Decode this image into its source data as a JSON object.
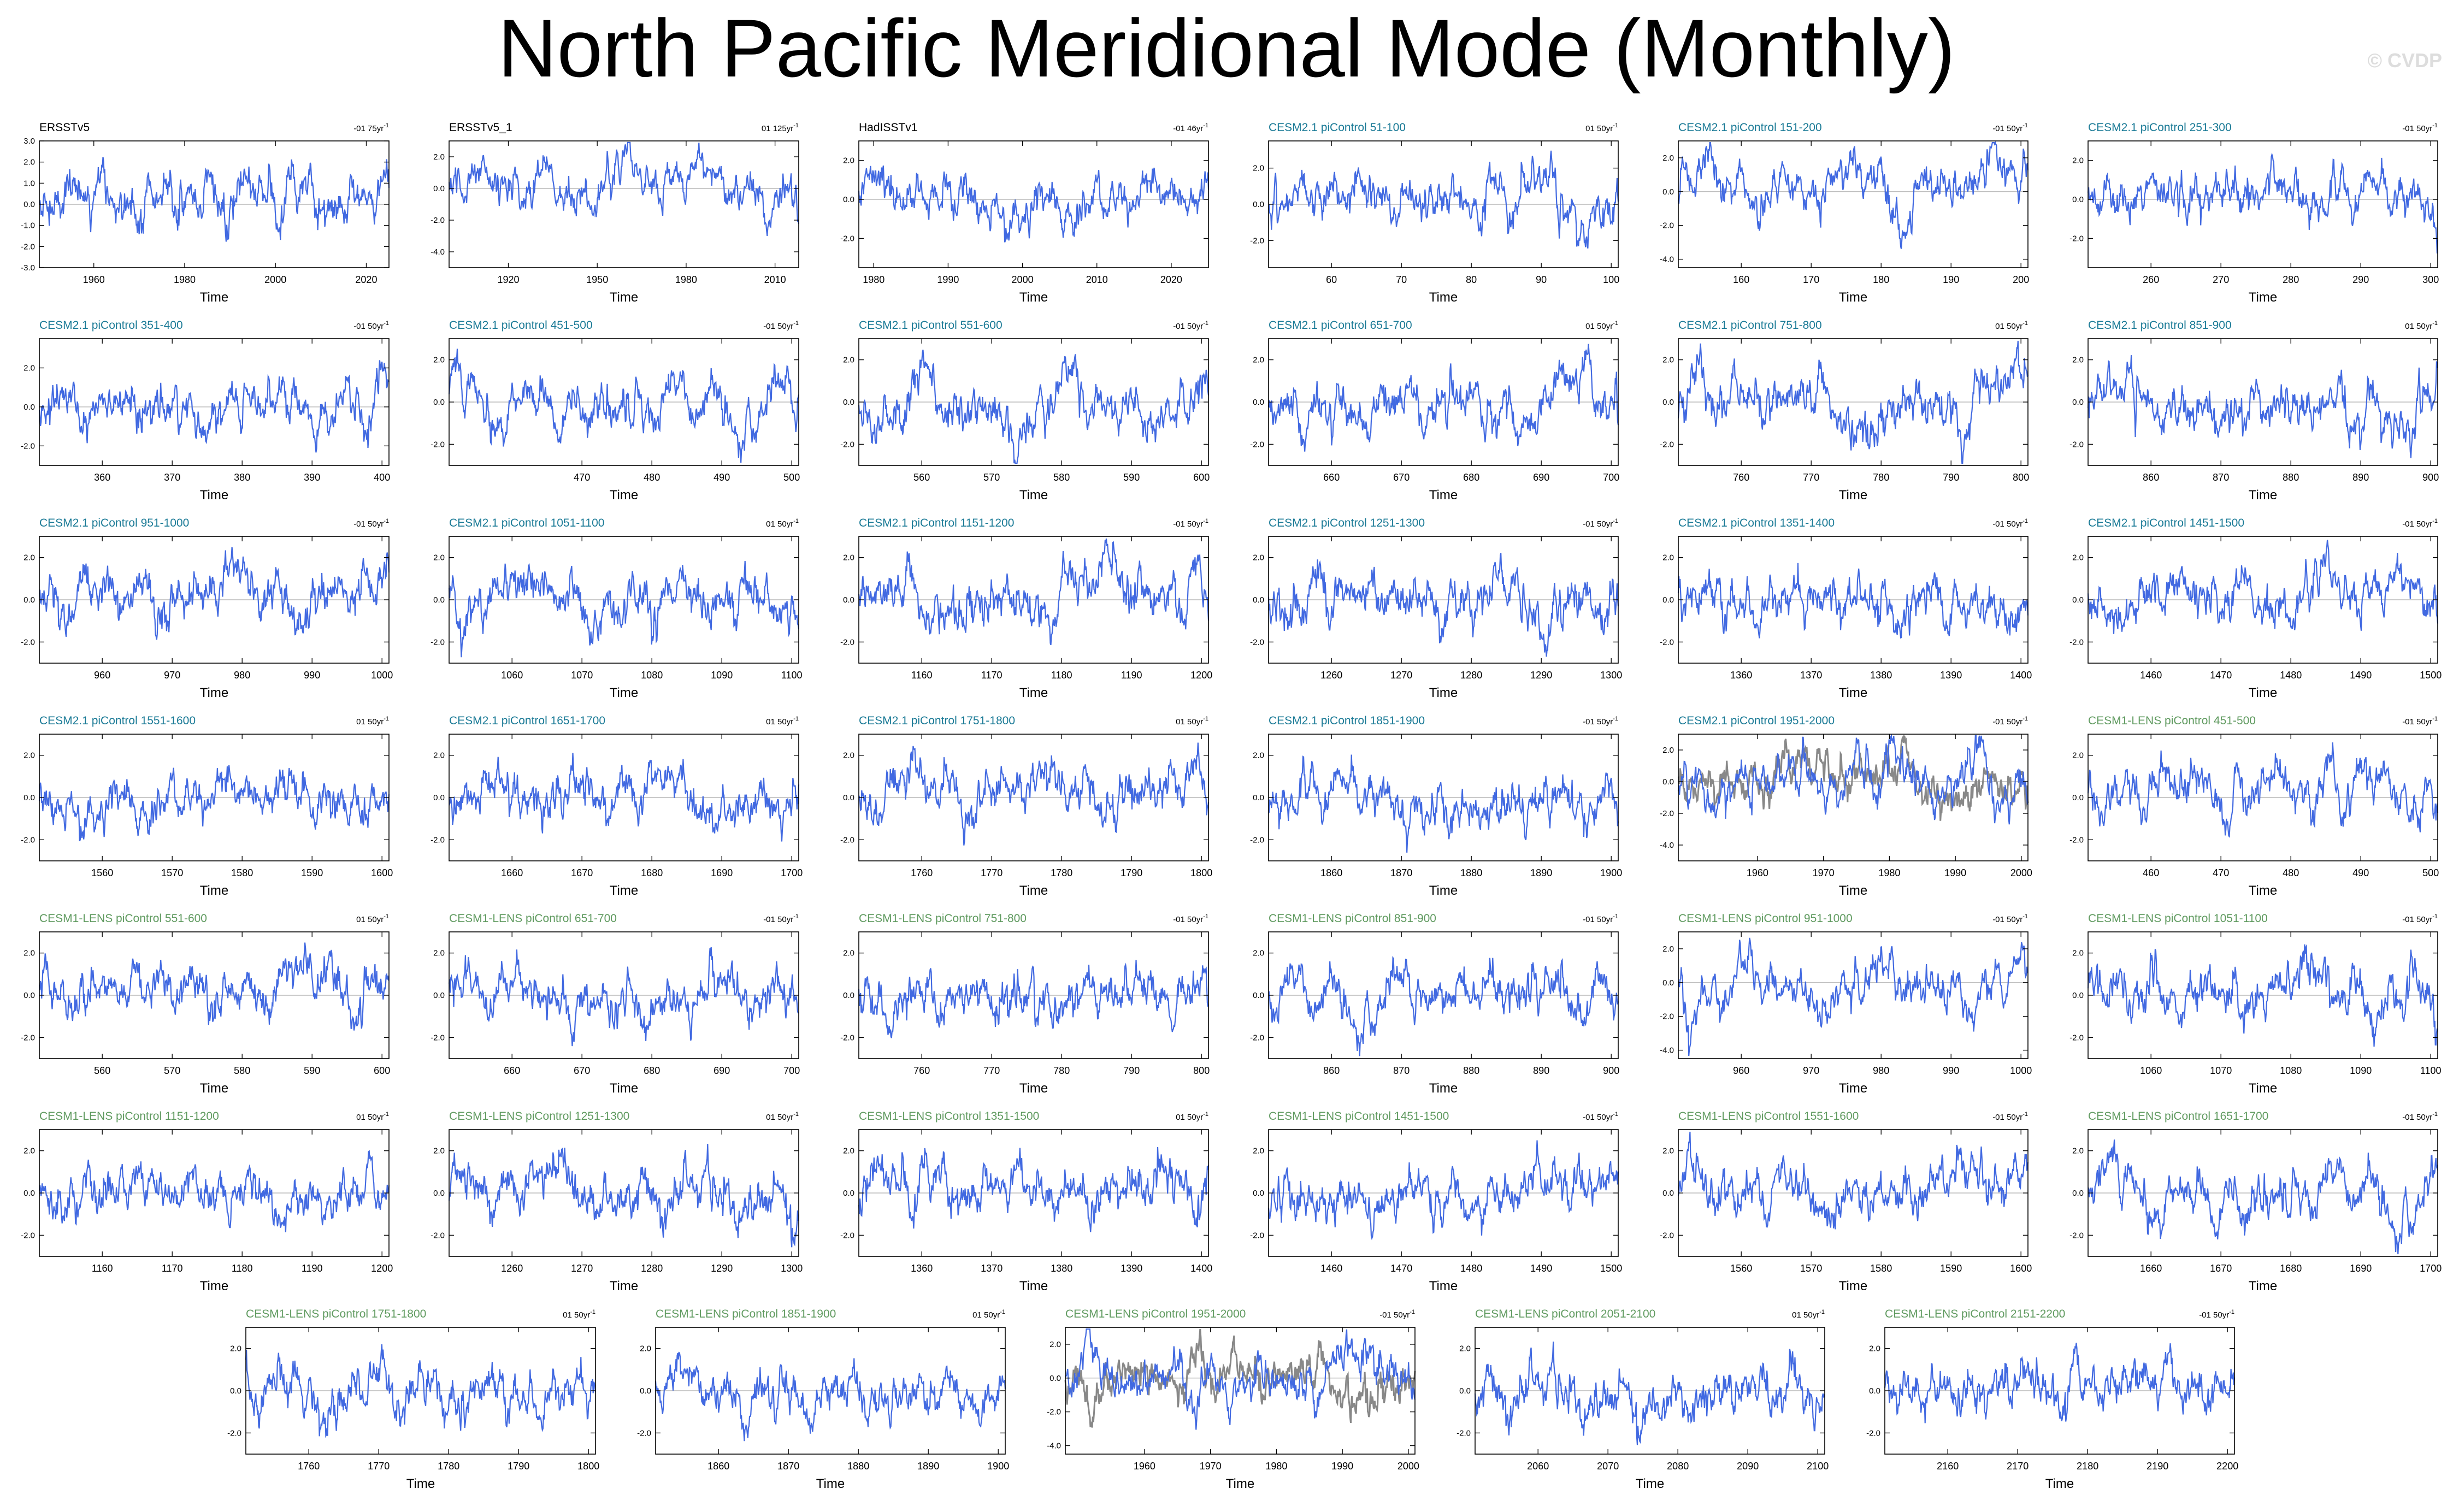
{
  "page": {
    "title": "North Pacific Meridional Mode (Monthly)",
    "watermark": "© CVDP"
  },
  "colors": {
    "observations_title": "#000000",
    "cesm2_title": "#1a7a96",
    "cesm1_title": "#5f9a5f",
    "series_line": "#4169e1",
    "reference_line": "#888888",
    "zero_line": "#aaaaaa"
  },
  "chart_data": [
    {
      "type": "line",
      "title": "ERSSTv5",
      "group": "obs",
      "trend": "-01 75yr",
      "xlabel": "Time",
      "xlim": [
        1948,
        2025
      ],
      "xticks": [
        1960,
        1980,
        2000,
        2020
      ],
      "ylim": [
        -3.0,
        3.0
      ],
      "yticks": [
        "3.0",
        "2.0",
        "1.0",
        "0.0",
        "-1.0",
        "-2.0",
        "-3.0"
      ],
      "seed": 11
    },
    {
      "type": "line",
      "title": "ERSSTv5_1",
      "group": "obs",
      "trend": "01 125yr",
      "xlabel": "Time",
      "xlim": [
        1900,
        2018
      ],
      "xticks": [
        1920,
        1950,
        1980,
        2010
      ],
      "ylim": [
        -5.0,
        3.0
      ],
      "yticks": [
        "2.0",
        "0.0",
        "-2.0",
        "-4.0"
      ],
      "seed": 12
    },
    {
      "type": "line",
      "title": "HadISSTv1",
      "group": "obs",
      "trend": "-01 46yr",
      "xlabel": "Time",
      "xlim": [
        1978,
        2025
      ],
      "xticks": [
        1980,
        1990,
        2000,
        2010,
        2020
      ],
      "ylim": [
        -3.5,
        3.0
      ],
      "yticks": [
        "2.0",
        "0.0",
        "-2.0"
      ],
      "seed": 13
    },
    {
      "type": "line",
      "title": "CESM2.1 piControl 51-100",
      "group": "cesm2",
      "trend": "01 50yr",
      "xlabel": "Time",
      "xlim": [
        51,
        101
      ],
      "xticks": [
        60,
        70,
        80,
        90,
        100
      ],
      "ylim": [
        -3.5,
        3.5
      ],
      "yticks": [
        "2.0",
        "0.0",
        "-2.0"
      ],
      "seed": 14
    },
    {
      "type": "line",
      "title": "CESM2.1 piControl 151-200",
      "group": "cesm2",
      "trend": "-01 50yr",
      "xlabel": "Time",
      "xlim": [
        151,
        201
      ],
      "xticks": [
        160,
        170,
        180,
        190,
        200
      ],
      "ylim": [
        -4.5,
        3.0
      ],
      "yticks": [
        "2.0",
        "0.0",
        "-2.0",
        "-4.0"
      ],
      "seed": 15
    },
    {
      "type": "line",
      "title": "CESM2.1 piControl 251-300",
      "group": "cesm2",
      "trend": "-01 50yr",
      "xlabel": "Time",
      "xlim": [
        251,
        301
      ],
      "xticks": [
        260,
        270,
        280,
        290,
        300
      ],
      "ylim": [
        -3.5,
        3.0
      ],
      "yticks": [
        "2.0",
        "0.0",
        "-2.0"
      ],
      "seed": 16
    },
    {
      "type": "line",
      "title": "CESM2.1 piControl 351-400",
      "group": "cesm2",
      "trend": "-01 50yr",
      "xlabel": "Time",
      "xlim": [
        351,
        401
      ],
      "xticks": [
        360,
        370,
        380,
        390,
        400
      ],
      "ylim": [
        -3.0,
        3.5
      ],
      "yticks": [
        "2.0",
        "0.0",
        "-2.0"
      ],
      "seed": 21
    },
    {
      "type": "line",
      "title": "CESM2.1 piControl 451-500",
      "group": "cesm2",
      "trend": "-01 50yr",
      "xlabel": "Time",
      "xlim": [
        451,
        501
      ],
      "xticks": [
        470,
        480,
        490,
        500
      ],
      "ylim": [
        -3.0,
        3.0
      ],
      "yticks": [
        "2.0",
        "0.0",
        "-2.0"
      ],
      "seed": 22
    },
    {
      "type": "line",
      "title": "CESM2.1 piControl 551-600",
      "group": "cesm2",
      "trend": "-01 50yr",
      "xlabel": "Time",
      "xlim": [
        551,
        601
      ],
      "xticks": [
        560,
        570,
        580,
        590,
        600
      ],
      "ylim": [
        -3.0,
        3.0
      ],
      "yticks": [
        "2.0",
        "0.0",
        "-2.0"
      ],
      "seed": 23
    },
    {
      "type": "line",
      "title": "CESM2.1 piControl 651-700",
      "group": "cesm2",
      "trend": "01 50yr",
      "xlabel": "Time",
      "xlim": [
        651,
        701
      ],
      "xticks": [
        660,
        670,
        680,
        690,
        700
      ],
      "ylim": [
        -3.0,
        3.0
      ],
      "yticks": [
        "2.0",
        "0.0",
        "-2.0"
      ],
      "seed": 24
    },
    {
      "type": "line",
      "title": "CESM2.1 piControl 751-800",
      "group": "cesm2",
      "trend": "01 50yr",
      "xlabel": "Time",
      "xlim": [
        751,
        801
      ],
      "xticks": [
        760,
        770,
        780,
        790,
        800
      ],
      "ylim": [
        -3.0,
        3.0
      ],
      "yticks": [
        "2.0",
        "0.0",
        "-2.0"
      ],
      "seed": 25
    },
    {
      "type": "line",
      "title": "CESM2.1 piControl 851-900",
      "group": "cesm2",
      "trend": "01 50yr",
      "xlabel": "Time",
      "xlim": [
        851,
        901
      ],
      "xticks": [
        860,
        870,
        880,
        890,
        900
      ],
      "ylim": [
        -3.0,
        3.0
      ],
      "yticks": [
        "2.0",
        "0.0",
        "-2.0"
      ],
      "seed": 26
    },
    {
      "type": "line",
      "title": "CESM2.1 piControl 951-1000",
      "group": "cesm2",
      "trend": "-01 50yr",
      "xlabel": "Time",
      "xlim": [
        951,
        1001
      ],
      "xticks": [
        960,
        970,
        980,
        990,
        1000
      ],
      "ylim": [
        -3.0,
        3.0
      ],
      "yticks": [
        "2.0",
        "0.0",
        "-2.0"
      ],
      "seed": 31
    },
    {
      "type": "line",
      "title": "CESM2.1 piControl 1051-1100",
      "group": "cesm2",
      "trend": "01 50yr",
      "xlabel": "Time",
      "xlim": [
        1051,
        1101
      ],
      "xticks": [
        1060,
        1070,
        1080,
        1090,
        1100
      ],
      "ylim": [
        -3.0,
        3.0
      ],
      "yticks": [
        "2.0",
        "0.0",
        "-2.0"
      ],
      "seed": 32
    },
    {
      "type": "line",
      "title": "CESM2.1 piControl 1151-1200",
      "group": "cesm2",
      "trend": "-01 50yr",
      "xlabel": "Time",
      "xlim": [
        1151,
        1201
      ],
      "xticks": [
        1160,
        1170,
        1180,
        1190,
        1200
      ],
      "ylim": [
        -3.0,
        3.0
      ],
      "yticks": [
        "2.0",
        "0.0",
        "-2.0"
      ],
      "seed": 33
    },
    {
      "type": "line",
      "title": "CESM2.1 piControl 1251-1300",
      "group": "cesm2",
      "trend": "-01 50yr",
      "xlabel": "Time",
      "xlim": [
        1251,
        1301
      ],
      "xticks": [
        1260,
        1270,
        1280,
        1290,
        1300
      ],
      "ylim": [
        -3.0,
        3.0
      ],
      "yticks": [
        "2.0",
        "0.0",
        "-2.0"
      ],
      "seed": 34
    },
    {
      "type": "line",
      "title": "CESM2.1 piControl 1351-1400",
      "group": "cesm2",
      "trend": "-01 50yr",
      "xlabel": "Time",
      "xlim": [
        1351,
        1401
      ],
      "xticks": [
        1360,
        1370,
        1380,
        1390,
        1400
      ],
      "ylim": [
        -3.0,
        3.0
      ],
      "yticks": [
        "2.0",
        "0.0",
        "-2.0"
      ],
      "seed": 35
    },
    {
      "type": "line",
      "title": "CESM2.1 piControl 1451-1500",
      "group": "cesm2",
      "trend": "-01 50yr",
      "xlabel": "Time",
      "xlim": [
        1451,
        1501
      ],
      "xticks": [
        1460,
        1470,
        1480,
        1490,
        1500
      ],
      "ylim": [
        -3.0,
        3.0
      ],
      "yticks": [
        "2.0",
        "0.0",
        "-2.0"
      ],
      "seed": 36
    },
    {
      "type": "line",
      "title": "CESM2.1 piControl 1551-1600",
      "group": "cesm2",
      "trend": "01 50yr",
      "xlabel": "Time",
      "xlim": [
        1551,
        1601
      ],
      "xticks": [
        1560,
        1570,
        1580,
        1590,
        1600
      ],
      "ylim": [
        -3.0,
        3.0
      ],
      "yticks": [
        "2.0",
        "0.0",
        "-2.0"
      ],
      "seed": 41
    },
    {
      "type": "line",
      "title": "CESM2.1 piControl 1651-1700",
      "group": "cesm2",
      "trend": "01 50yr",
      "xlabel": "Time",
      "xlim": [
        1651,
        1701
      ],
      "xticks": [
        1660,
        1670,
        1680,
        1690,
        1700
      ],
      "ylim": [
        -3.0,
        3.0
      ],
      "yticks": [
        "2.0",
        "0.0",
        "-2.0"
      ],
      "seed": 42
    },
    {
      "type": "line",
      "title": "CESM2.1 piControl 1751-1800",
      "group": "cesm2",
      "trend": "01 50yr",
      "xlabel": "Time",
      "xlim": [
        1751,
        1801
      ],
      "xticks": [
        1760,
        1770,
        1780,
        1790,
        1800
      ],
      "ylim": [
        -3.0,
        3.0
      ],
      "yticks": [
        "2.0",
        "0.0",
        "-2.0"
      ],
      "seed": 43
    },
    {
      "type": "line",
      "title": "CESM2.1 piControl 1851-1900",
      "group": "cesm2",
      "trend": "-01 50yr",
      "xlabel": "Time",
      "xlim": [
        1851,
        1901
      ],
      "xticks": [
        1860,
        1870,
        1880,
        1890,
        1900
      ],
      "ylim": [
        -3.0,
        3.0
      ],
      "yticks": [
        "2.0",
        "0.0",
        "-2.0"
      ],
      "seed": 44
    },
    {
      "type": "line",
      "title": "CESM2.1 piControl 1951-2000",
      "group": "cesm2",
      "trend": "-01 50yr",
      "xlabel": "Time",
      "xlim": [
        1948,
        2001
      ],
      "xticks": [
        1960,
        1970,
        1980,
        1990,
        2000
      ],
      "ylim": [
        -5.0,
        3.0
      ],
      "yticks": [
        "2.0",
        "0.0",
        "-2.0",
        "-4.0"
      ],
      "overlay": true,
      "seed": 45
    },
    {
      "type": "line",
      "title": "CESM1-LENS piControl 451-500",
      "group": "cesm1",
      "trend": "-01 50yr",
      "xlabel": "Time",
      "xlim": [
        451,
        501
      ],
      "xticks": [
        460,
        470,
        480,
        490,
        500
      ],
      "ylim": [
        -3.0,
        3.0
      ],
      "yticks": [
        "2.0",
        "0.0",
        "-2.0"
      ],
      "seed": 46
    },
    {
      "type": "line",
      "title": "CESM1-LENS piControl 551-600",
      "group": "cesm1",
      "trend": "01 50yr",
      "xlabel": "Time",
      "xlim": [
        551,
        601
      ],
      "xticks": [
        560,
        570,
        580,
        590,
        600
      ],
      "ylim": [
        -3.0,
        3.0
      ],
      "yticks": [
        "2.0",
        "0.0",
        "-2.0"
      ],
      "seed": 51
    },
    {
      "type": "line",
      "title": "CESM1-LENS piControl 651-700",
      "group": "cesm1",
      "trend": "-01 50yr",
      "xlabel": "Time",
      "xlim": [
        651,
        701
      ],
      "xticks": [
        660,
        670,
        680,
        690,
        700
      ],
      "ylim": [
        -3.0,
        3.0
      ],
      "yticks": [
        "2.0",
        "0.0",
        "-2.0"
      ],
      "seed": 52
    },
    {
      "type": "line",
      "title": "CESM1-LENS piControl 751-800",
      "group": "cesm1",
      "trend": "-01 50yr",
      "xlabel": "Time",
      "xlim": [
        751,
        801
      ],
      "xticks": [
        760,
        770,
        780,
        790,
        800
      ],
      "ylim": [
        -3.0,
        3.0
      ],
      "yticks": [
        "2.0",
        "0.0",
        "-2.0"
      ],
      "seed": 53
    },
    {
      "type": "line",
      "title": "CESM1-LENS piControl 851-900",
      "group": "cesm1",
      "trend": "-01 50yr",
      "xlabel": "Time",
      "xlim": [
        851,
        901
      ],
      "xticks": [
        860,
        870,
        880,
        890,
        900
      ],
      "ylim": [
        -3.0,
        3.0
      ],
      "yticks": [
        "2.0",
        "0.0",
        "-2.0"
      ],
      "seed": 54
    },
    {
      "type": "line",
      "title": "CESM1-LENS piControl 951-1000",
      "group": "cesm1",
      "trend": "-01 50yr",
      "xlabel": "Time",
      "xlim": [
        951,
        1001
      ],
      "xticks": [
        960,
        970,
        980,
        990,
        1000
      ],
      "ylim": [
        -4.5,
        3.0
      ],
      "yticks": [
        "2.0",
        "0.0",
        "-2.0",
        "-4.0"
      ],
      "seed": 55
    },
    {
      "type": "line",
      "title": "CESM1-LENS piControl 1051-1100",
      "group": "cesm1",
      "trend": "-01 50yr",
      "xlabel": "Time",
      "xlim": [
        1051,
        1101
      ],
      "xticks": [
        1060,
        1070,
        1080,
        1090,
        1100
      ],
      "ylim": [
        -3.0,
        3.0
      ],
      "yticks": [
        "2.0",
        "0.0",
        "-2.0"
      ],
      "seed": 56
    },
    {
      "type": "line",
      "title": "CESM1-LENS piControl 1151-1200",
      "group": "cesm1",
      "trend": "01 50yr",
      "xlabel": "Time",
      "xlim": [
        1151,
        1201
      ],
      "xticks": [
        1160,
        1170,
        1180,
        1190,
        1200
      ],
      "ylim": [
        -3.0,
        3.0
      ],
      "yticks": [
        "2.0",
        "0.0",
        "-2.0"
      ],
      "seed": 61
    },
    {
      "type": "line",
      "title": "CESM1-LENS piControl 1251-1300",
      "group": "cesm1",
      "trend": "01 50yr",
      "xlabel": "Time",
      "xlim": [
        1251,
        1301
      ],
      "xticks": [
        1260,
        1270,
        1280,
        1290,
        1300
      ],
      "ylim": [
        -3.0,
        3.0
      ],
      "yticks": [
        "2.0",
        "0.0",
        "-2.0"
      ],
      "seed": 62
    },
    {
      "type": "line",
      "title": "CESM1-LENS piControl 1351-1500",
      "group": "cesm1",
      "trend": "01 50yr",
      "xlabel": "Time",
      "xlim": [
        1351,
        1401
      ],
      "xticks": [
        1360,
        1370,
        1380,
        1390,
        1400
      ],
      "ylim": [
        -3.0,
        3.0
      ],
      "yticks": [
        "2.0",
        "0.0",
        "-2.0"
      ],
      "seed": 63
    },
    {
      "type": "line",
      "title": "CESM1-LENS piControl 1451-1500",
      "group": "cesm1",
      "trend": "-01 50yr",
      "xlabel": "Time",
      "xlim": [
        1451,
        1501
      ],
      "xticks": [
        1460,
        1470,
        1480,
        1490,
        1500
      ],
      "ylim": [
        -3.0,
        3.0
      ],
      "yticks": [
        "2.0",
        "0.0",
        "-2.0"
      ],
      "seed": 64
    },
    {
      "type": "line",
      "title": "CESM1-LENS piControl 1551-1600",
      "group": "cesm1",
      "trend": "-01 50yr",
      "xlabel": "Time",
      "xlim": [
        1551,
        1601
      ],
      "xticks": [
        1560,
        1570,
        1580,
        1590,
        1600
      ],
      "ylim": [
        -3.0,
        3.0
      ],
      "yticks": [
        "2.0",
        "0.0",
        "-2.0"
      ],
      "seed": 65
    },
    {
      "type": "line",
      "title": "CESM1-LENS piControl 1651-1700",
      "group": "cesm1",
      "trend": "-01 50yr",
      "xlabel": "Time",
      "xlim": [
        1651,
        1701
      ],
      "xticks": [
        1660,
        1670,
        1680,
        1690,
        1700
      ],
      "ylim": [
        -3.0,
        3.0
      ],
      "yticks": [
        "2.0",
        "0.0",
        "-2.0"
      ],
      "seed": 66
    },
    {
      "type": "line",
      "title": "CESM1-LENS piControl 1751-1800",
      "group": "cesm1",
      "trend": "01 50yr",
      "xlabel": "Time",
      "xlim": [
        1751,
        1801
      ],
      "xticks": [
        1760,
        1770,
        1780,
        1790,
        1800
      ],
      "ylim": [
        -3.0,
        3.0
      ],
      "yticks": [
        "2.0",
        "0.0",
        "-2.0"
      ],
      "seed": 71
    },
    {
      "type": "line",
      "title": "CESM1-LENS piControl 1851-1900",
      "group": "cesm1",
      "trend": "01 50yr",
      "xlabel": "Time",
      "xlim": [
        1851,
        1901
      ],
      "xticks": [
        1860,
        1870,
        1880,
        1890,
        1900
      ],
      "ylim": [
        -3.0,
        3.0
      ],
      "yticks": [
        "2.0",
        "0.0",
        "-2.0"
      ],
      "seed": 72
    },
    {
      "type": "line",
      "title": "CESM1-LENS piControl 1951-2000",
      "group": "cesm1",
      "trend": "-01 50yr",
      "xlabel": "Time",
      "xlim": [
        1948,
        2001
      ],
      "xticks": [
        1960,
        1970,
        1980,
        1990,
        2000
      ],
      "ylim": [
        -4.5,
        3.0
      ],
      "yticks": [
        "2.0",
        "0.0",
        "-2.0",
        "-4.0"
      ],
      "overlay": true,
      "seed": 73
    },
    {
      "type": "line",
      "title": "CESM1-LENS piControl 2051-2100",
      "group": "cesm1",
      "trend": "01 50yr",
      "xlabel": "Time",
      "xlim": [
        2051,
        2101
      ],
      "xticks": [
        2060,
        2070,
        2080,
        2090,
        2100
      ],
      "ylim": [
        -3.0,
        3.0
      ],
      "yticks": [
        "2.0",
        "0.0",
        "-2.0"
      ],
      "seed": 74
    },
    {
      "type": "line",
      "title": "CESM1-LENS piControl 2151-2200",
      "group": "cesm1",
      "trend": "-01 50yr",
      "xlabel": "Time",
      "xlim": [
        2151,
        2201
      ],
      "xticks": [
        2160,
        2170,
        2180,
        2190,
        2200
      ],
      "ylim": [
        -3.0,
        3.0
      ],
      "yticks": [
        "2.0",
        "0.0",
        "-2.0"
      ],
      "seed": 75
    }
  ]
}
